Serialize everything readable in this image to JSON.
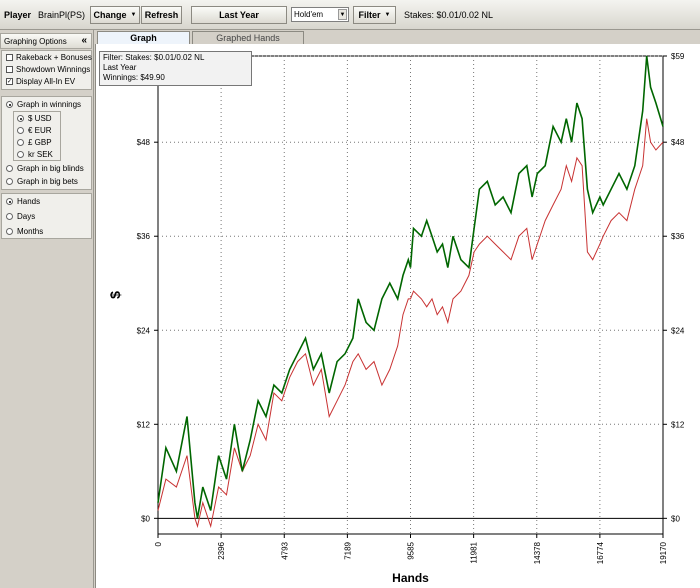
{
  "toolbar": {
    "player_label": "Player",
    "player_name": "BrainPl(PS)",
    "change_label": "Change",
    "refresh_label": "Refresh",
    "period_label": "Last Year",
    "game_value": "Hold'em",
    "filter_label": "Filter",
    "stakes_text": "Stakes: $0.01/0.02 NL"
  },
  "sidebar": {
    "header": "Graphing Options",
    "collapse_glyph": "«",
    "checkboxes": [
      {
        "label": "Rakeback + Bonuses",
        "checked": false
      },
      {
        "label": "Showdown Winnings",
        "checked": false
      },
      {
        "label": "Display All-In EV",
        "checked": true
      }
    ],
    "graph_in": [
      {
        "label": "Graph in winnings",
        "selected": true
      },
      {
        "label": "Graph in big blinds",
        "selected": false
      },
      {
        "label": "Graph in big bets",
        "selected": false
      }
    ],
    "currencies": [
      {
        "label": "$ USD",
        "selected": true
      },
      {
        "label": "€ EUR",
        "selected": false
      },
      {
        "label": "£ GBP",
        "selected": false
      },
      {
        "label": "kr SEK",
        "selected": false
      }
    ],
    "x_axis": [
      {
        "label": "Hands",
        "selected": true
      },
      {
        "label": "Days",
        "selected": false
      },
      {
        "label": "Months",
        "selected": false
      }
    ]
  },
  "tabs": [
    {
      "label": "Graph",
      "active": true
    },
    {
      "label": "Graphed Hands",
      "active": false
    }
  ],
  "legend": {
    "line1": "Filter: Stakes: $0.01/0.02 NL",
    "line2": "Last Year",
    "line3": "Winnings: $49.90"
  },
  "colors": {
    "winnings": "#006600",
    "allin_ev": "#c83232"
  },
  "chart_data": {
    "type": "line",
    "xlabel": "Hands",
    "ylabel": "$",
    "xlim": [
      0,
      19170
    ],
    "ylim": [
      -2,
      59
    ],
    "x_ticks": [
      "0",
      "2396",
      "4793",
      "7189",
      "9585",
      "11981",
      "14378",
      "16774",
      "19170"
    ],
    "y_ticks": [
      "$0",
      "$12",
      "$24",
      "$36",
      "$48",
      "$59"
    ],
    "grid": true,
    "series": [
      {
        "name": "Winnings",
        "x": [
          0,
          300,
          700,
          1100,
          1400,
          1500,
          1700,
          2000,
          2300,
          2600,
          2900,
          3200,
          3500,
          3800,
          4100,
          4400,
          4700,
          5000,
          5300,
          5600,
          5900,
          6200,
          6500,
          6800,
          7100,
          7400,
          7600,
          7900,
          8200,
          8500,
          8800,
          9100,
          9300,
          9500,
          9585,
          9700,
          10000,
          10200,
          10400,
          10600,
          10800,
          11000,
          11200,
          11500,
          11800,
          12000,
          12200,
          12500,
          12800,
          13100,
          13400,
          13700,
          14000,
          14200,
          14400,
          14700,
          15000,
          15300,
          15500,
          15700,
          15900,
          16100,
          16300,
          16500,
          16774,
          16900,
          17200,
          17500,
          17800,
          18100,
          18400,
          18550,
          18700,
          18900,
          19170
        ],
        "y": [
          2,
          9,
          6,
          13,
          2,
          0,
          4,
          1,
          8,
          5,
          12,
          6,
          10,
          15,
          13,
          17,
          16,
          19,
          21,
          23,
          19,
          21,
          16,
          20,
          21,
          23,
          28,
          25,
          24,
          28,
          30,
          28,
          31,
          33,
          32,
          37,
          36,
          38,
          36,
          34,
          35,
          32,
          36,
          33,
          32,
          37,
          42,
          43,
          40,
          41,
          39,
          44,
          45,
          41,
          44,
          45,
          50,
          48,
          51,
          48,
          53,
          51,
          42,
          39,
          41,
          40,
          42,
          44,
          42,
          45,
          52,
          59,
          55,
          53,
          50
        ]
      },
      {
        "name": "All-In EV",
        "x": [
          0,
          300,
          700,
          1100,
          1400,
          1500,
          1700,
          2000,
          2300,
          2600,
          2900,
          3200,
          3500,
          3800,
          4100,
          4400,
          4700,
          5000,
          5300,
          5600,
          5900,
          6200,
          6500,
          6800,
          7100,
          7400,
          7600,
          7900,
          8200,
          8500,
          8800,
          9100,
          9300,
          9500,
          9585,
          9700,
          10000,
          10200,
          10400,
          10600,
          10800,
          11000,
          11200,
          11500,
          11800,
          12000,
          12200,
          12500,
          12800,
          13100,
          13400,
          13700,
          14000,
          14200,
          14400,
          14700,
          15000,
          15300,
          15500,
          15700,
          15900,
          16100,
          16300,
          16500,
          16774,
          16900,
          17200,
          17500,
          17800,
          18100,
          18400,
          18550,
          18700,
          18900,
          19170
        ],
        "y": [
          1,
          5,
          4,
          8,
          0,
          -1,
          2,
          -1,
          4,
          3,
          9,
          6,
          8,
          12,
          10,
          16,
          15,
          18,
          20,
          21,
          17,
          19,
          13,
          15,
          17,
          20,
          21,
          19,
          20,
          17,
          19,
          22,
          26,
          28,
          28,
          29,
          28,
          27,
          28,
          26,
          27,
          25,
          28,
          29,
          31,
          34,
          35,
          36,
          35,
          34,
          33,
          36,
          37,
          33,
          35,
          38,
          40,
          42,
          45,
          43,
          46,
          45,
          34,
          33,
          35,
          36,
          38,
          39,
          38,
          42,
          45,
          51,
          48,
          47,
          48
        ]
      }
    ]
  }
}
